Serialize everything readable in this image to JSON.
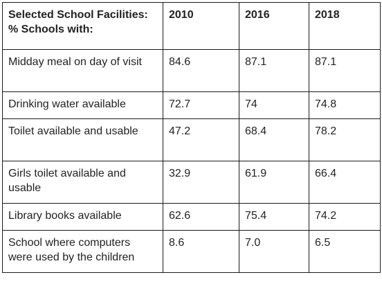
{
  "table": {
    "headers": [
      "Selected School Facilities: % Schools with:",
      "2010",
      "2016",
      "2018"
    ],
    "rows": [
      [
        "Midday meal on day of visit",
        "84.6",
        "87.1",
        "87.1"
      ],
      [
        "Drinking water available",
        "72.7",
        "74",
        "74.8"
      ],
      [
        "Toilet available and usable",
        "47.2",
        "68.4",
        "78.2"
      ],
      [
        "Girls toilet available and usable",
        "32.9",
        "61.9",
        "66.4"
      ],
      [
        "Library books available",
        "62.6",
        "75.4",
        "74.2"
      ],
      [
        "School where computers were used by the children",
        "8.6",
        "7.0",
        "6.5"
      ]
    ]
  }
}
